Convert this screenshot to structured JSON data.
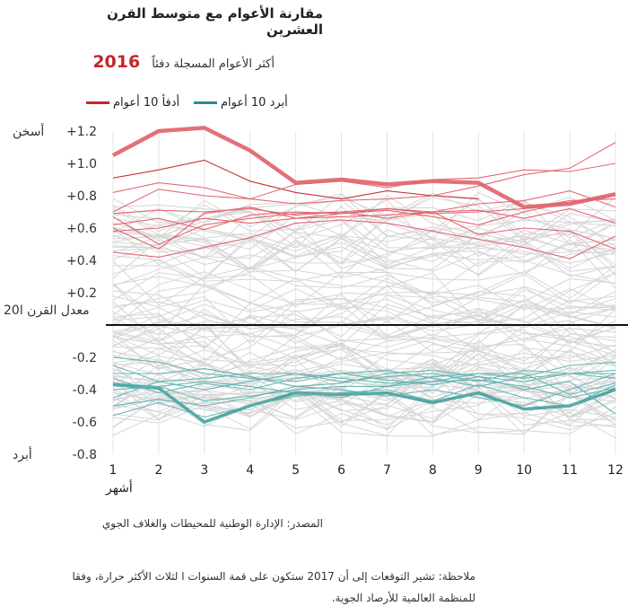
{
  "title": "مقارنة الأعوام مع متوسط القرن العشرين",
  "subtitle": "أكثر الأعوام المسجلة دفئاً",
  "highlight_year": "2016",
  "legend": [
    {
      "label": "أدفأ 10 أعوام",
      "color": "#c0282d"
    },
    {
      "label": "أبرد 10 أعوام",
      "color": "#2a8c8c"
    }
  ],
  "source": "المصدر: الإدارة الوطنية للمحيطات والغلاف الجوي",
  "note": "ملاحظة: تشير التوقعات إلى أن 2017 ستكون على قمة السنوات ا لثلاث الأكثر حرارة، وفقا للمنظمة العالمية للأرصاد الجوية.",
  "chart_data": {
    "type": "line",
    "x": [
      1,
      2,
      3,
      4,
      5,
      6,
      7,
      8,
      9,
      10,
      11,
      12
    ],
    "x_tick_labels": [
      "1",
      "2",
      "3",
      "4",
      "5",
      "6",
      "7",
      "8",
      "9",
      "10",
      "11",
      "12"
    ],
    "xlabel": "أشهر",
    "y_ticks": [
      1.2,
      1.0,
      0.8,
      0.6,
      0.4,
      0.2,
      -0.2,
      -0.4,
      -0.6,
      -0.8
    ],
    "y_tick_labels": [
      "+1.2",
      "+1.0",
      "+0.8",
      "+0.6",
      "+0.4",
      "+0.2",
      "-0.2",
      "-0.4",
      "-0.6",
      "-0.8"
    ],
    "y_annotations": {
      "top": "أسخن",
      "zero": "20معدل القرن ا",
      "bottom": "أبرد"
    },
    "ylim": [
      -0.8,
      1.2
    ],
    "grid": "vertical",
    "colors": {
      "warm": "#e0606a",
      "warm_dark": "#c0282d",
      "cool": "#5fb3b0",
      "cool_dark": "#3a9a9a",
      "other": "#d6d6d6"
    },
    "highlight_series": {
      "name": "2016",
      "values": [
        1.05,
        1.2,
        1.22,
        1.08,
        0.88,
        0.9,
        0.87,
        0.89,
        0.88,
        0.73,
        0.75,
        0.81
      ]
    },
    "warmest_series": [
      [
        0.91,
        0.96,
        1.02,
        0.89,
        0.82,
        0.78,
        0.83,
        0.8,
        0.78,
        null,
        null,
        null
      ],
      [
        0.82,
        0.88,
        0.85,
        0.78,
        0.75,
        0.77,
        0.78,
        0.8,
        0.86,
        0.93,
        0.97,
        1.13
      ],
      [
        0.7,
        0.84,
        0.8,
        0.78,
        0.87,
        0.89,
        0.85,
        0.9,
        0.91,
        0.96,
        0.95,
        1.0
      ],
      [
        0.69,
        0.71,
        0.7,
        0.72,
        0.68,
        0.7,
        0.72,
        0.7,
        0.75,
        0.77,
        0.83,
        0.73
      ],
      [
        0.6,
        0.47,
        0.69,
        0.73,
        0.66,
        0.69,
        0.71,
        0.67,
        0.62,
        0.7,
        0.76,
        0.8
      ],
      [
        0.67,
        0.5,
        0.62,
        0.66,
        0.69,
        0.7,
        0.66,
        0.7,
        0.56,
        0.6,
        0.58,
        0.47
      ],
      [
        0.58,
        0.6,
        0.66,
        0.63,
        0.66,
        0.67,
        0.68,
        0.7,
        0.71,
        0.66,
        0.72,
        0.63
      ],
      [
        0.45,
        0.42,
        0.48,
        0.54,
        0.63,
        0.65,
        0.63,
        0.58,
        0.53,
        0.48,
        0.41,
        0.55
      ],
      [
        0.62,
        0.66,
        0.59,
        0.68,
        0.7,
        0.69,
        0.72,
        0.69,
        0.7,
        0.72,
        0.77,
        0.78
      ]
    ],
    "coldest_series": [
      [
        -0.37,
        -0.39,
        -0.6,
        -0.5,
        -0.42,
        -0.43,
        -0.42,
        -0.48,
        -0.42,
        -0.52,
        -0.5,
        -0.4
      ],
      [
        -0.36,
        -0.38,
        -0.47,
        -0.44,
        -0.4,
        -0.38,
        -0.38,
        -0.35,
        -0.34,
        -0.38,
        -0.45,
        -0.39
      ],
      [
        -0.56,
        -0.48,
        -0.57,
        -0.5,
        -0.44,
        -0.42,
        -0.4,
        -0.47,
        -0.37,
        -0.45,
        -0.5,
        -0.37
      ],
      [
        -0.2,
        -0.23,
        -0.3,
        -0.33,
        -0.35,
        -0.3,
        -0.28,
        -0.33,
        -0.38,
        -0.32,
        -0.25,
        -0.23
      ],
      [
        -0.45,
        -0.35,
        -0.4,
        -0.35,
        -0.3,
        -0.35,
        -0.32,
        -0.3,
        -0.35,
        -0.28,
        -0.3,
        -0.28
      ],
      [
        -0.3,
        -0.3,
        -0.27,
        -0.32,
        -0.38,
        -0.36,
        -0.3,
        -0.28,
        -0.32,
        -0.35,
        -0.3,
        -0.33
      ],
      [
        -0.5,
        -0.46,
        -0.5,
        -0.45,
        -0.38,
        -0.4,
        -0.44,
        -0.4,
        -0.45,
        -0.5,
        -0.4,
        -0.3
      ],
      [
        -0.33,
        -0.42,
        -0.36,
        -0.4,
        -0.33,
        -0.3,
        -0.34,
        -0.37,
        -0.32,
        -0.4,
        -0.35,
        -0.55
      ],
      [
        -0.4,
        -0.38,
        -0.35,
        -0.38,
        -0.42,
        -0.45,
        -0.38,
        -0.32,
        -0.3,
        -0.3,
        -0.43,
        -0.36
      ],
      [
        -0.25,
        -0.35,
        -0.33,
        -0.3,
        -0.3,
        -0.33,
        -0.36,
        -0.35,
        -0.3,
        -0.33,
        -0.3,
        -0.3
      ]
    ]
  }
}
